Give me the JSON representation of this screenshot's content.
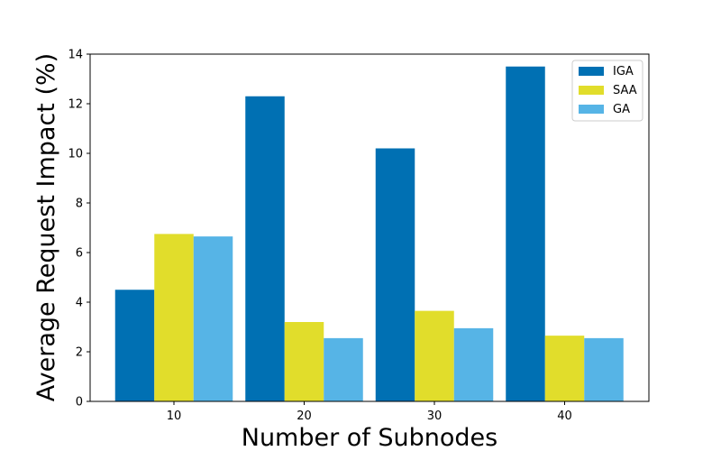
{
  "chart_data": {
    "type": "bar",
    "title": "",
    "xlabel": "Number of Subnodes",
    "ylabel": "Average Request Impact (%)",
    "categories": [
      "10",
      "20",
      "30",
      "40"
    ],
    "series": [
      {
        "name": "IGA",
        "color": "#0070b3",
        "values": [
          4.5,
          12.3,
          10.2,
          13.5
        ]
      },
      {
        "name": "SAA",
        "color": "#e1dd2b",
        "values": [
          6.75,
          3.2,
          3.65,
          2.65
        ]
      },
      {
        "name": "GA",
        "color": "#56b4e6",
        "values": [
          6.65,
          2.55,
          2.95,
          2.55
        ]
      }
    ],
    "ylim": [
      0,
      14
    ],
    "yticks": [
      "0",
      "2",
      "4",
      "6",
      "8",
      "10",
      "12",
      "14"
    ],
    "grid": false,
    "legend_position": "top-right"
  }
}
